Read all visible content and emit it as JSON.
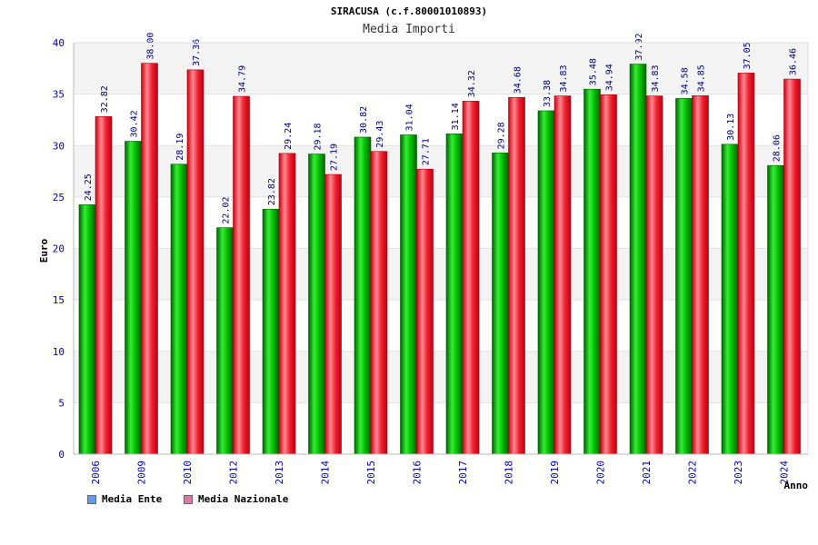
{
  "chart_data": {
    "type": "bar",
    "title": "SIRACUSA (c.f.80001010893)",
    "subtitle": "Media Importi",
    "xlabel": "Anno",
    "ylabel": "Euro",
    "ylim": [
      0,
      40
    ],
    "yticks": [
      0,
      5,
      10,
      15,
      20,
      25,
      30,
      35,
      40
    ],
    "grid": true,
    "legend_position": "bottom-left",
    "categories": [
      "2006",
      "2009",
      "2010",
      "2012",
      "2013",
      "2014",
      "2015",
      "2016",
      "2017",
      "2018",
      "2019",
      "2020",
      "2021",
      "2022",
      "2023",
      "2024"
    ],
    "series": [
      {
        "name": "Media Ente",
        "color": "#00b800",
        "legend_color": "#6699ee",
        "values": [
          24.25,
          30.42,
          28.19,
          22.02,
          23.82,
          29.18,
          30.82,
          31.04,
          31.14,
          29.28,
          33.38,
          35.48,
          37.92,
          34.58,
          30.13,
          28.06
        ],
        "labels": [
          "24.25",
          "30.42",
          "28.19",
          "22.02",
          "23.82",
          "29.18",
          "30.82",
          "31.04",
          "31.14",
          "29.28",
          "33.38",
          "35.48",
          "37.92",
          "34.58",
          "30.13",
          "28.06"
        ]
      },
      {
        "name": "Media Nazionale",
        "color": "#ee1a2a",
        "legend_color": "#dd77aa",
        "values": [
          32.82,
          38.0,
          37.36,
          34.79,
          29.24,
          27.19,
          29.43,
          27.71,
          34.32,
          34.68,
          34.83,
          34.94,
          34.83,
          34.85,
          37.05,
          36.46
        ],
        "labels": [
          "32.82",
          "38.00",
          "37.36",
          "34.79",
          "29.24",
          "27.19",
          "29.43",
          "27.71",
          "34.32",
          "34.68",
          "34.83",
          "34.94",
          "34.83",
          "34.85",
          "37.05",
          "36.46"
        ]
      }
    ]
  }
}
